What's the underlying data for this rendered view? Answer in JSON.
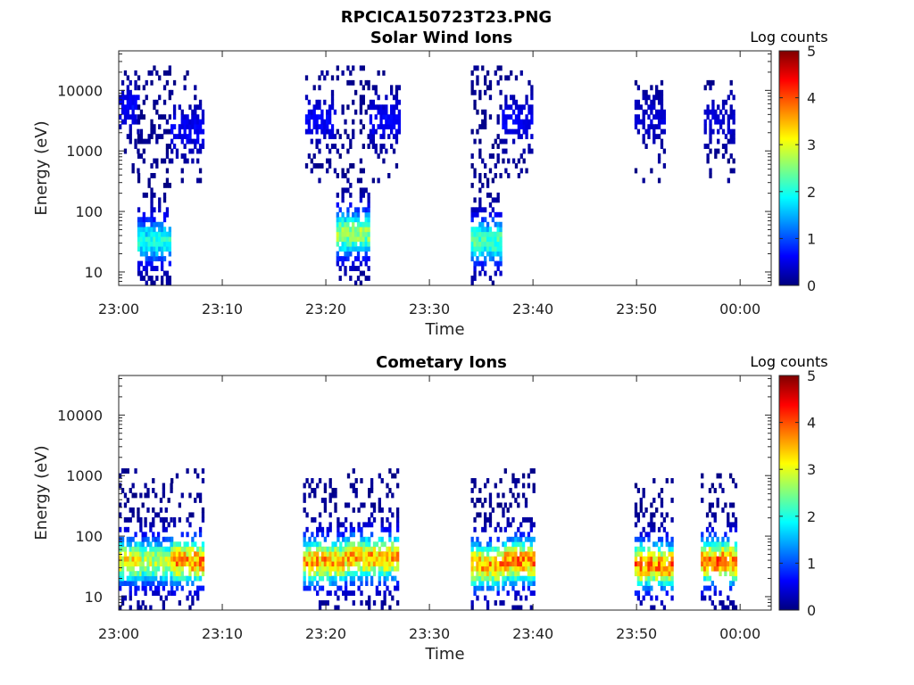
{
  "figure_title": "RPCICA150723T23.PNG",
  "chart_data": [
    {
      "type": "heatmap",
      "title": "Solar Wind Ions",
      "xlabel": "Time",
      "ylabel": "Energy (eV)",
      "x_ticks": [
        "23:00",
        "23:10",
        "23:20",
        "23:30",
        "23:40",
        "23:50",
        "00:00"
      ],
      "y_ticks": [
        "10",
        "100",
        "1000",
        "10000"
      ],
      "y_scale": "log",
      "ylim": [
        6,
        45000
      ],
      "xlim_minutes": [
        0,
        63
      ],
      "colorbar": {
        "label": "Log counts",
        "ticks": [
          "0",
          "1",
          "2",
          "3",
          "4",
          "5"
        ],
        "range": [
          0,
          5
        ],
        "colormap": "jet"
      },
      "activity": [
        {
          "t_start": 0.0,
          "t_end": 1.8,
          "e_low": 300,
          "e_high": 20000,
          "peak_log": 0.6,
          "peak_energy": 5000,
          "density": 0.35
        },
        {
          "t_start": 1.8,
          "t_end": 5.0,
          "e_low": 6,
          "e_high": 25000,
          "peak_log": 2.2,
          "peak_energy": 30,
          "density": 0.6
        },
        {
          "t_start": 5.0,
          "t_end": 8.2,
          "e_low": 350,
          "e_high": 18000,
          "peak_log": 0.6,
          "peak_energy": 2000,
          "density": 0.3
        },
        {
          "t_start": 18.0,
          "t_end": 21.0,
          "e_low": 300,
          "e_high": 18000,
          "peak_log": 0.6,
          "peak_energy": 3000,
          "density": 0.3
        },
        {
          "t_start": 21.0,
          "t_end": 24.2,
          "e_low": 6,
          "e_high": 25000,
          "peak_log": 3.0,
          "peak_energy": 40,
          "density": 0.6
        },
        {
          "t_start": 24.2,
          "t_end": 27.0,
          "e_low": 350,
          "e_high": 18000,
          "peak_log": 0.6,
          "peak_energy": 3000,
          "density": 0.3
        },
        {
          "t_start": 34.0,
          "t_end": 37.0,
          "e_low": 6,
          "e_high": 25000,
          "peak_log": 2.6,
          "peak_energy": 30,
          "density": 0.6
        },
        {
          "t_start": 37.0,
          "t_end": 40.0,
          "e_low": 400,
          "e_high": 18000,
          "peak_log": 0.6,
          "peak_energy": 3000,
          "density": 0.3
        },
        {
          "t_start": 49.8,
          "t_end": 52.6,
          "e_low": 300,
          "e_high": 14000,
          "peak_log": 0.4,
          "peak_energy": 3000,
          "density": 0.25
        },
        {
          "t_start": 56.5,
          "t_end": 59.5,
          "e_low": 300,
          "e_high": 14000,
          "peak_log": 0.4,
          "peak_energy": 3000,
          "density": 0.25
        }
      ]
    },
    {
      "type": "heatmap",
      "title": "Cometary Ions",
      "xlabel": "Time",
      "ylabel": "Energy (eV)",
      "x_ticks": [
        "23:00",
        "23:10",
        "23:20",
        "23:30",
        "23:40",
        "23:50",
        "00:00"
      ],
      "y_ticks": [
        "10",
        "100",
        "1000",
        "10000"
      ],
      "y_scale": "log",
      "ylim": [
        6,
        45000
      ],
      "xlim_minutes": [
        0,
        63
      ],
      "colorbar": {
        "label": "Log counts",
        "ticks": [
          "0",
          "1",
          "2",
          "3",
          "4",
          "5"
        ],
        "range": [
          0,
          5
        ],
        "colormap": "jet"
      },
      "activity": [
        {
          "t_start": 0.0,
          "t_end": 2.2,
          "e_low": 6,
          "e_high": 1200,
          "peak_log": 3.6,
          "peak_energy": 35,
          "density": 0.55
        },
        {
          "t_start": 2.2,
          "t_end": 5.0,
          "e_low": 6,
          "e_high": 900,
          "peak_log": 3.2,
          "peak_energy": 35,
          "density": 0.5
        },
        {
          "t_start": 5.0,
          "t_end": 8.2,
          "e_low": 6,
          "e_high": 1100,
          "peak_log": 4.2,
          "peak_energy": 35,
          "density": 0.55
        },
        {
          "t_start": 17.8,
          "t_end": 21.8,
          "e_low": 6,
          "e_high": 900,
          "peak_log": 4.0,
          "peak_energy": 35,
          "density": 0.55
        },
        {
          "t_start": 21.8,
          "t_end": 27.0,
          "e_low": 6,
          "e_high": 1300,
          "peak_log": 4.0,
          "peak_energy": 40,
          "density": 0.55
        },
        {
          "t_start": 34.0,
          "t_end": 37.2,
          "e_low": 6,
          "e_high": 900,
          "peak_log": 4.1,
          "peak_energy": 30,
          "density": 0.5
        },
        {
          "t_start": 37.2,
          "t_end": 40.2,
          "e_low": 6,
          "e_high": 1300,
          "peak_log": 4.2,
          "peak_energy": 35,
          "density": 0.55
        },
        {
          "t_start": 49.8,
          "t_end": 53.4,
          "e_low": 6,
          "e_high": 1000,
          "peak_log": 4.3,
          "peak_energy": 30,
          "density": 0.5
        },
        {
          "t_start": 56.2,
          "t_end": 59.5,
          "e_low": 6,
          "e_high": 1000,
          "peak_log": 4.3,
          "peak_energy": 35,
          "density": 0.5
        }
      ]
    }
  ]
}
